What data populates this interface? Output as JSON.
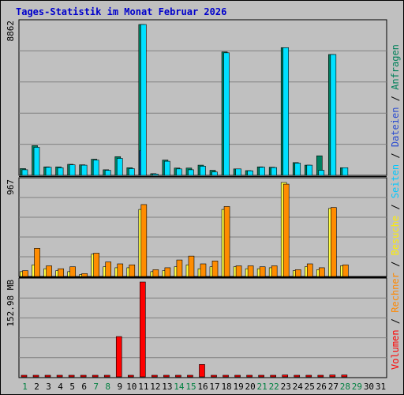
{
  "title": "Tages-Statistik im Monat Februar 2026",
  "legend": [
    {
      "label": "Volumen",
      "color": "#ff0000"
    },
    {
      "label": " / ",
      "color": "#000000"
    },
    {
      "label": "Rechner",
      "color": "#ff8800"
    },
    {
      "label": " / ",
      "color": "#000000"
    },
    {
      "label": "Besuche",
      "color": "#ffee00"
    },
    {
      "label": " / ",
      "color": "#000000"
    },
    {
      "label": "Seiten",
      "color": "#00c8ff"
    },
    {
      "label": " / ",
      "color": "#000000"
    },
    {
      "label": "Dateien",
      "color": "#2a4bd0"
    },
    {
      "label": " / ",
      "color": "#000000"
    },
    {
      "label": "Anfragen",
      "color": "#00805a"
    }
  ],
  "colors": {
    "background": "#c0c0c0",
    "grid": "#808080",
    "weekend_day": "#008040",
    "weekday_day": "#000000",
    "anfragen": "#008060",
    "dateien": "#1040c0",
    "seiten": "#00e0ff",
    "besuche": "#ffff40",
    "rechner": "#ff8c00",
    "volumen": "#ff0000"
  },
  "chart_data": {
    "type": "bar",
    "title": "Tages-Statistik im Monat Februar 2026",
    "categories": [
      "1",
      "2",
      "3",
      "4",
      "5",
      "6",
      "7",
      "8",
      "9",
      "10",
      "11",
      "12",
      "13",
      "14",
      "15",
      "16",
      "17",
      "18",
      "19",
      "20",
      "21",
      "22",
      "23",
      "24",
      "25",
      "26",
      "27",
      "28",
      "29",
      "30",
      "31"
    ],
    "weekend_days": [
      "1",
      "7",
      "8",
      "14",
      "15",
      "21",
      "22",
      "28",
      "29"
    ],
    "panels": [
      {
        "ymax_label": "8862",
        "ylim": [
          0,
          8862
        ],
        "series": [
          {
            "name": "Anfragen",
            "values": [
              400,
              1750,
              500,
              500,
              650,
              620,
              950,
              330,
              1100,
              450,
              8862,
              100,
              900,
              430,
              430,
              600,
              300,
              7250,
              380,
              280,
              500,
              480,
              7500,
              750,
              600,
              1150,
              7100,
              450,
              0,
              0,
              0
            ]
          },
          {
            "name": "Dateien",
            "values": [
              0,
              0,
              0,
              0,
              0,
              0,
              0,
              0,
              0,
              0,
              1450,
              0,
              0,
              0,
              0,
              0,
              0,
              0,
              0,
              0,
              0,
              0,
              0,
              0,
              0,
              0,
              0,
              0,
              0,
              0,
              0
            ]
          },
          {
            "name": "Seiten",
            "values": [
              330,
              1650,
              480,
              450,
              620,
              600,
              900,
              300,
              1000,
              400,
              8862,
              80,
              830,
              380,
              330,
              540,
              200,
              7200,
              380,
              270,
              480,
              460,
              7500,
              720,
              600,
              300,
              7100,
              450,
              0,
              0,
              0
            ]
          }
        ]
      },
      {
        "ymax_label": "967",
        "ylim": [
          0,
          967
        ],
        "series": [
          {
            "name": "Besuche",
            "values": [
              50,
              120,
              80,
              60,
              50,
              20,
              230,
              100,
              90,
              90,
              690,
              50,
              60,
              100,
              120,
              80,
              100,
              690,
              100,
              80,
              80,
              90,
              967,
              60,
              100,
              70,
              700,
              110,
              0,
              0,
              0
            ]
          },
          {
            "name": "Rechner",
            "values": [
              60,
              290,
              110,
              80,
              100,
              30,
              240,
              150,
              130,
              120,
              740,
              70,
              90,
              170,
              210,
              130,
              160,
              720,
              110,
              110,
              100,
              110,
              950,
              70,
              130,
              90,
              710,
              120,
              0,
              0,
              0
            ]
          }
        ]
      },
      {
        "ymax_label": "152.98 MB",
        "ylim": [
          0,
          152.98
        ],
        "series": [
          {
            "name": "Volumen",
            "values": [
              0.5,
              0.5,
              0.5,
              0.5,
              0.5,
              0.5,
              0.5,
              0.5,
              65,
              0.5,
              152.98,
              0.5,
              0.5,
              0.5,
              0.5,
              20,
              0.5,
              2,
              0.5,
              0.5,
              0.5,
              0.5,
              3,
              0.5,
              0.5,
              0.5,
              3,
              3,
              0,
              0,
              0
            ]
          }
        ]
      }
    ],
    "legend_placement": "right-vertical",
    "grid": true
  }
}
